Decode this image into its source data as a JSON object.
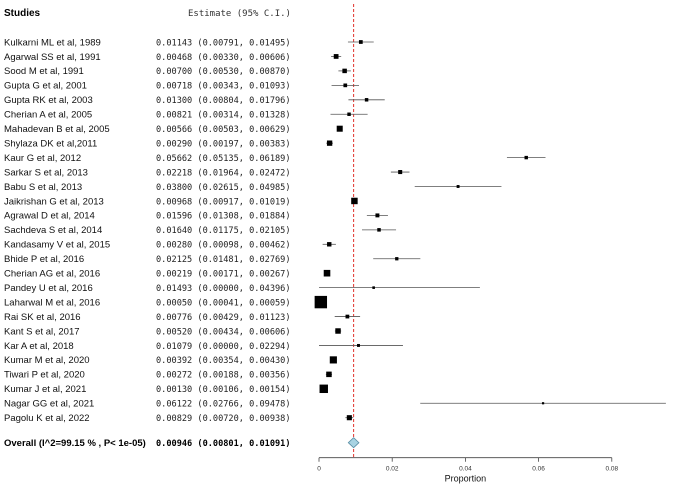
{
  "header": {
    "studies_label": "Studies",
    "estimate_label": "Estimate (95% C.I.)"
  },
  "chart_data": {
    "type": "forest",
    "xlabel": "Proportion",
    "xlim": [
      0,
      0.08
    ],
    "xticks": [
      0,
      0.02,
      0.04,
      0.06,
      0.08
    ],
    "xtick_labels": [
      "0",
      "0.02",
      "0.04",
      "0.06",
      "0.08"
    ],
    "reference_line": 0.00946,
    "colors": {
      "reference_line": "#e0302a",
      "summary_diamond_fill": "#a9d3e2",
      "summary_diamond_stroke": "#5a8fa5",
      "marker": "#000000"
    },
    "studies": [
      {
        "label": "Kulkarni ML et al, 1989",
        "est": 0.01143,
        "lo": 0.00791,
        "hi": 0.01495,
        "text": "0.01143 (0.00791, 0.01495)"
      },
      {
        "label": "Agarwal SS et al, 1991",
        "est": 0.00468,
        "lo": 0.0033,
        "hi": 0.00606,
        "text": "0.00468 (0.00330, 0.00606)"
      },
      {
        "label": "Sood M et al, 1991",
        "est": 0.007,
        "lo": 0.0053,
        "hi": 0.0087,
        "text": "0.00700 (0.00530, 0.00870)"
      },
      {
        "label": "Gupta G et al, 2001",
        "est": 0.00718,
        "lo": 0.00343,
        "hi": 0.01093,
        "text": "0.00718 (0.00343, 0.01093)"
      },
      {
        "label": "Gupta RK et al, 2003",
        "est": 0.013,
        "lo": 0.00804,
        "hi": 0.01796,
        "text": "0.01300 (0.00804, 0.01796)"
      },
      {
        "label": "Cherian A et al, 2005",
        "est": 0.00821,
        "lo": 0.00314,
        "hi": 0.01328,
        "text": "0.00821 (0.00314, 0.01328)"
      },
      {
        "label": "Mahadevan B et al, 2005",
        "est": 0.00566,
        "lo": 0.00503,
        "hi": 0.00629,
        "text": "0.00566 (0.00503, 0.00629)"
      },
      {
        "label": "Shylaza DK et al,2011",
        "est": 0.0029,
        "lo": 0.00197,
        "hi": 0.00383,
        "text": "0.00290 (0.00197, 0.00383)"
      },
      {
        "label": "Kaur G et al, 2012",
        "est": 0.05662,
        "lo": 0.05135,
        "hi": 0.06189,
        "text": "0.05662 (0.05135, 0.06189)"
      },
      {
        "label": "Sarkar S et al, 2013",
        "est": 0.02218,
        "lo": 0.01964,
        "hi": 0.02472,
        "text": "0.02218 (0.01964, 0.02472)"
      },
      {
        "label": "Babu S et al, 2013",
        "est": 0.038,
        "lo": 0.02615,
        "hi": 0.04985,
        "text": "0.03800 (0.02615, 0.04985)"
      },
      {
        "label": "Jaikrishan G et al, 2013",
        "est": 0.00968,
        "lo": 0.00917,
        "hi": 0.01019,
        "text": "0.00968 (0.00917, 0.01019)"
      },
      {
        "label": "Agrawal D et al, 2014",
        "est": 0.01596,
        "lo": 0.01308,
        "hi": 0.01884,
        "text": "0.01596 (0.01308, 0.01884)"
      },
      {
        "label": "Sachdeva S et al, 2014",
        "est": 0.0164,
        "lo": 0.01175,
        "hi": 0.02105,
        "text": "0.01640 (0.01175, 0.02105)"
      },
      {
        "label": "Kandasamy V et al, 2015",
        "est": 0.0028,
        "lo": 0.00098,
        "hi": 0.00462,
        "text": "0.00280 (0.00098, 0.00462)"
      },
      {
        "label": "Bhide P et al, 2016",
        "est": 0.02125,
        "lo": 0.01481,
        "hi": 0.02769,
        "text": "0.02125 (0.01481, 0.02769)"
      },
      {
        "label": "Cherian AG et al, 2016",
        "est": 0.00219,
        "lo": 0.00171,
        "hi": 0.00267,
        "text": "0.00219 (0.00171, 0.00267)"
      },
      {
        "label": "Pandey U et al, 2016",
        "est": 0.01493,
        "lo": 0.0,
        "hi": 0.04396,
        "text": "0.01493 (0.00000, 0.04396)"
      },
      {
        "label": "Laharwal M et al, 2016",
        "est": 0.0005,
        "lo": 0.00041,
        "hi": 0.00059,
        "text": "0.00050 (0.00041, 0.00059)"
      },
      {
        "label": "Rai SK et al, 2016",
        "est": 0.00776,
        "lo": 0.00429,
        "hi": 0.01123,
        "text": "0.00776 (0.00429, 0.01123)"
      },
      {
        "label": "Kant S et al, 2017",
        "est": 0.0052,
        "lo": 0.00434,
        "hi": 0.00606,
        "text": "0.00520 (0.00434, 0.00606)"
      },
      {
        "label": "Kar A et al, 2018",
        "est": 0.01079,
        "lo": 0.0,
        "hi": 0.02294,
        "text": "0.01079 (0.00000, 0.02294)"
      },
      {
        "label": "Kumar M et al, 2020",
        "est": 0.00392,
        "lo": 0.00354,
        "hi": 0.0043,
        "text": "0.00392 (0.00354, 0.00430)"
      },
      {
        "label": "Tiwari P et al, 2020",
        "est": 0.00272,
        "lo": 0.00188,
        "hi": 0.00356,
        "text": "0.00272 (0.00188, 0.00356)"
      },
      {
        "label": "Kumar J et al, 2021",
        "est": 0.0013,
        "lo": 0.00106,
        "hi": 0.00154,
        "text": "0.00130 (0.00106, 0.00154)"
      },
      {
        "label": "Nagar GG et al, 2021",
        "est": 0.06122,
        "lo": 0.02766,
        "hi": 0.09478,
        "text": "0.06122 (0.02766, 0.09478)"
      },
      {
        "label": "Pagolu K et al, 2022",
        "est": 0.00829,
        "lo": 0.0072,
        "hi": 0.00938,
        "text": "0.00829 (0.00720, 0.00938)"
      }
    ],
    "overall": {
      "label": "Overall (I^2=99.15 % , P< 1e-05)",
      "est": 0.00946,
      "lo": 0.00801,
      "hi": 0.01091,
      "text": "0.00946 (0.00801, 0.01091)"
    }
  }
}
